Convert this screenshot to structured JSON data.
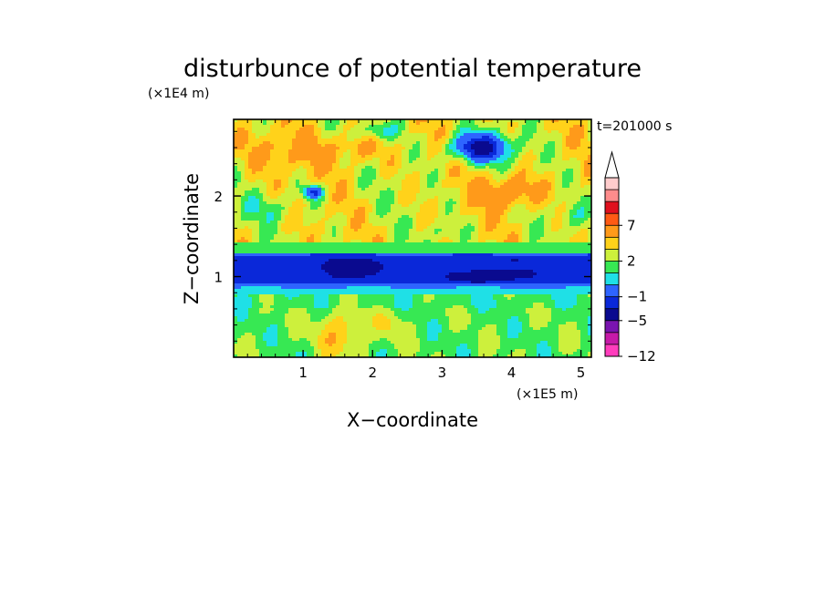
{
  "chart_data": {
    "type": "heatmap",
    "title": "disturbunce of potential temperature",
    "xlabel": "X−coordinate",
    "ylabel": "Z−coordinate",
    "x_unit": "(×1E5 m)",
    "y_unit": "(×1E4 m)",
    "time_label": "t=201000 s",
    "xlim": [
      0,
      5.15
    ],
    "ylim": [
      0,
      2.95
    ],
    "x_ticks": [
      1,
      2,
      3,
      4,
      5
    ],
    "x_tick_labels": [
      "1",
      "2",
      "3",
      "4",
      "5"
    ],
    "y_ticks": [
      1,
      2
    ],
    "y_tick_labels": [
      "1",
      "2"
    ],
    "colorbar": {
      "levels": [
        -12,
        -10,
        -8,
        -5,
        -3,
        -1,
        0,
        1,
        2,
        3,
        5,
        7,
        9,
        11
      ],
      "colors": [
        "#ff3dbd",
        "#c71aa8",
        "#7a14b0",
        "#0a0a8f",
        "#0a28d9",
        "#2e64ff",
        "#1fe0e6",
        "#37e853",
        "#cdf03c",
        "#ffd21a",
        "#ff9a1a",
        "#ff5a14",
        "#e0101e",
        "#ff8c8c",
        "#ffcccc"
      ],
      "tick_labels": [
        {
          "value": 7,
          "text": "7"
        },
        {
          "value": 2,
          "text": "2"
        },
        {
          "value": -1,
          "text": "−1"
        },
        {
          "value": -5,
          "text": "−5"
        },
        {
          "value": -12,
          "text": "−12"
        }
      ],
      "extend": "max"
    },
    "field_summary": {
      "x": [
        0.0,
        0.5,
        1.0,
        1.5,
        2.0,
        2.5,
        3.0,
        3.5,
        4.0,
        4.5,
        5.0
      ],
      "z": [
        0.2,
        0.6,
        1.0,
        1.4,
        1.8,
        2.2,
        2.6
      ],
      "values": [
        [
          0.5,
          1.0,
          0.5,
          3.0,
          1.5,
          1.0,
          0.5,
          0.5,
          1.0,
          0.5,
          0.5
        ],
        [
          0.0,
          0.5,
          0.5,
          1.0,
          0.5,
          0.0,
          0.0,
          0.0,
          0.5,
          0.0,
          0.0
        ],
        [
          -4.0,
          -4.0,
          -4.0,
          -5.5,
          -5.5,
          -4.0,
          -4.0,
          -5.5,
          -5.5,
          -4.0,
          -4.0
        ],
        [
          1.0,
          1.0,
          1.5,
          1.0,
          1.0,
          1.0,
          1.0,
          1.0,
          1.0,
          1.0,
          1.0
        ],
        [
          2.5,
          2.0,
          1.5,
          3.5,
          3.0,
          2.5,
          2.0,
          3.0,
          4.0,
          2.0,
          1.5
        ],
        [
          2.0,
          3.0,
          -2.0,
          2.5,
          3.0,
          2.5,
          3.0,
          3.0,
          5.0,
          2.0,
          1.5
        ],
        [
          3.5,
          2.5,
          2.0,
          3.0,
          3.5,
          2.0,
          1.5,
          -6.0,
          -5.0,
          1.5,
          3.0
        ]
      ]
    }
  }
}
